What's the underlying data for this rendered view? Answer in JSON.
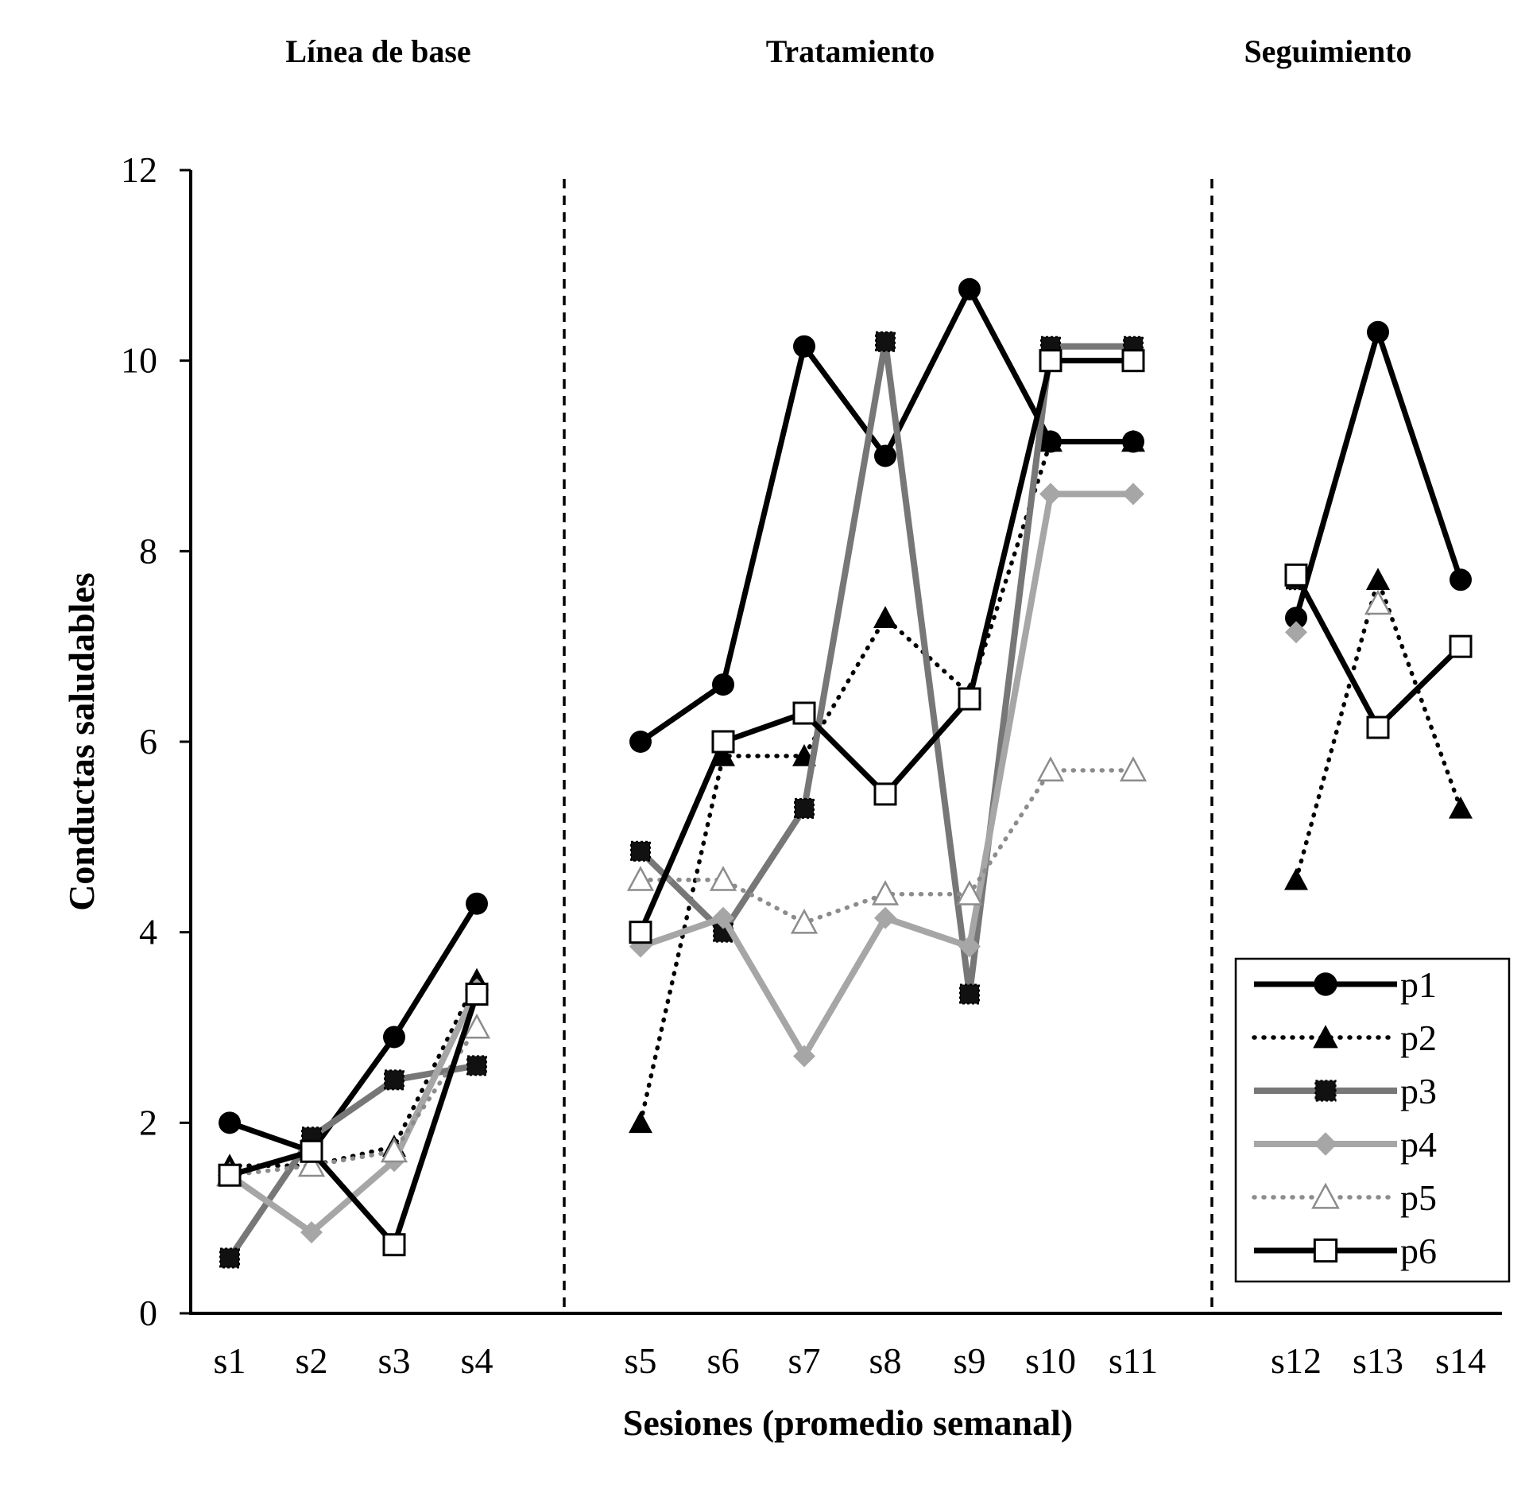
{
  "chart_data": {
    "type": "line",
    "phases": [
      "Línea de base",
      "Tratamiento",
      "Seguimiento"
    ],
    "xlabel": "Sesiones (promedio semanal)",
    "ylabel": "Conductas saludables",
    "ylim": [
      0,
      12
    ],
    "yticks": [
      "0",
      "2",
      "4",
      "6",
      "8",
      "10",
      "12"
    ],
    "categories": [
      "s1",
      "s2",
      "s3",
      "s4",
      "s5",
      "s6",
      "s7",
      "s8",
      "s9",
      "s10",
      "s11",
      "s12",
      "s13",
      "s14"
    ],
    "phase_segments": [
      [
        0,
        3
      ],
      [
        4,
        10
      ],
      [
        11,
        13
      ]
    ],
    "legend_position": "bottom-right",
    "series": [
      {
        "name": "p1",
        "values": [
          2.0,
          1.7,
          2.9,
          4.3,
          6.0,
          6.6,
          10.15,
          9.0,
          10.75,
          9.15,
          9.15,
          7.3,
          10.3,
          7.7
        ],
        "color": "#000000",
        "line": "solid",
        "marker": "circle-filled"
      },
      {
        "name": "p2",
        "values": [
          1.55,
          1.55,
          1.75,
          3.5,
          2.0,
          5.85,
          5.85,
          7.3,
          6.5,
          9.15,
          9.15,
          4.55,
          7.7,
          5.3
        ],
        "color": "#000000",
        "line": "dotted",
        "marker": "triangle-filled"
      },
      {
        "name": "p3",
        "values": [
          0.58,
          1.85,
          2.45,
          2.6,
          4.85,
          4.0,
          5.3,
          10.2,
          3.35,
          10.15,
          10.15,
          7.7,
          null,
          null
        ],
        "color": "#777777",
        "line": "solid",
        "marker": "square-filled"
      },
      {
        "name": "p4",
        "values": [
          1.45,
          0.85,
          1.6,
          3.4,
          3.85,
          4.15,
          2.7,
          4.15,
          3.85,
          8.6,
          8.6,
          7.15,
          null,
          null
        ],
        "color": "#a6a6a6",
        "line": "solid",
        "marker": "diamond-filled"
      },
      {
        "name": "p5",
        "values": [
          1.45,
          1.55,
          1.7,
          3.0,
          4.55,
          4.55,
          4.1,
          4.4,
          4.4,
          5.7,
          5.7,
          null,
          7.45,
          null
        ],
        "color": "#8c8c8c",
        "line": "dotted",
        "marker": "triangle-open"
      },
      {
        "name": "p6",
        "values": [
          1.45,
          1.7,
          0.72,
          3.35,
          4.0,
          6.0,
          6.3,
          5.45,
          6.45,
          10.0,
          10.0,
          7.75,
          6.15,
          7.0
        ],
        "color": "#000000",
        "line": "solid",
        "marker": "square-open"
      }
    ]
  }
}
